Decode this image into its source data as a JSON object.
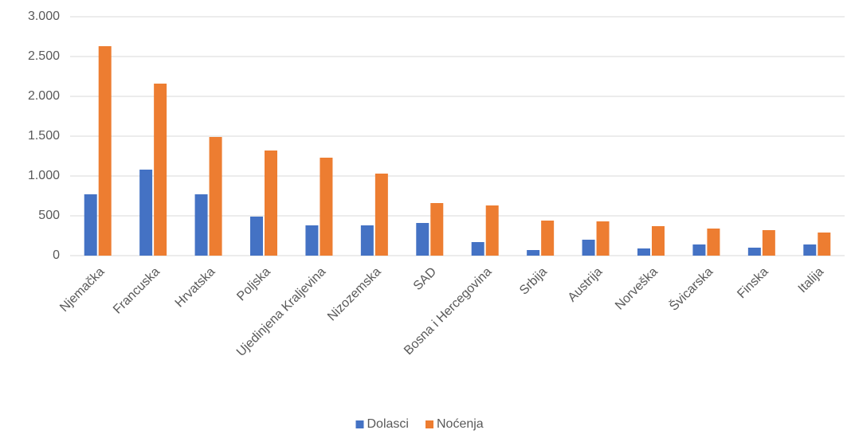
{
  "chart_data": {
    "type": "bar",
    "categories": [
      "Njemačka",
      "Francuska",
      "Hrvatska",
      "Poljska",
      "Ujedinjena Kraljevina",
      "Nizozemska",
      "SAD",
      "Bosna i Hercegovina",
      "Srbija",
      "Austrija",
      "Norveška",
      "Švicarska",
      "Finska",
      "Italija"
    ],
    "series": [
      {
        "name": "Dolasci",
        "color": "#4472c4",
        "values": [
          770,
          1080,
          770,
          490,
          380,
          380,
          410,
          170,
          70,
          200,
          90,
          140,
          100,
          140
        ]
      },
      {
        "name": "Noćenja",
        "color": "#ed7d31",
        "values": [
          2630,
          2160,
          1490,
          1320,
          1230,
          1030,
          660,
          630,
          440,
          430,
          370,
          340,
          320,
          290
        ]
      }
    ],
    "ylim": [
      0,
      3000
    ],
    "yticks": [
      0,
      500,
      {
        "value": 1000,
        "label": "1.000"
      },
      {
        "value": 1500,
        "label": "1.500"
      },
      {
        "value": 2000,
        "label": "2.000"
      },
      {
        "value": 2500,
        "label": "2.500"
      },
      {
        "value": 3000,
        "label": "3.000"
      }
    ],
    "grid": true,
    "legend": "bottom"
  }
}
